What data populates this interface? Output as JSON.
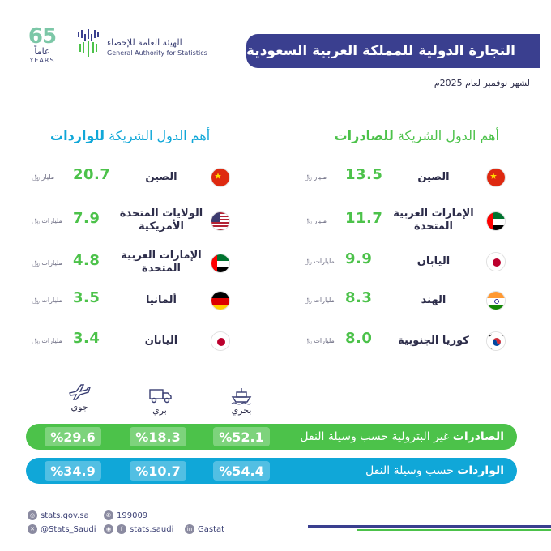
{
  "header": {
    "anniversary_number": "65",
    "anniversary_ar": "عاماً",
    "anniversary_en": "YEARS",
    "org_name_ar": "الهيئة العامة للإحصاء",
    "org_name_en": "General Authority for Statistics",
    "title": "التجارة الدولية للمملكة العربية السعودية",
    "subtitle": "لشهر نوفمبر لعام 2025م"
  },
  "exports": {
    "title_prefix": "أهم الدول الشريكة",
    "title_bold": "للصادرات",
    "color": "#4cc24a",
    "items": [
      {
        "country": "الصين",
        "value": "13.5",
        "unit": "مليار ﷼",
        "flag": "china-flag-icon"
      },
      {
        "country": "الإمارات العربية المتحدة",
        "value": "11.7",
        "unit": "مليار ﷼",
        "flag": "uae-flag-icon"
      },
      {
        "country": "اليابان",
        "value": "9.9",
        "unit": "مليارات ﷼",
        "flag": "japan-flag-icon"
      },
      {
        "country": "الهند",
        "value": "8.3",
        "unit": "مليارات ﷼",
        "flag": "india-flag-icon"
      },
      {
        "country": "كوريا الجنوبية",
        "value": "8.0",
        "unit": "مليارات ﷼",
        "flag": "south-korea-flag-icon"
      }
    ]
  },
  "imports": {
    "title_prefix": "أهم الدول الشريكة",
    "title_bold": "للواردات",
    "color": "#10a7d8",
    "items": [
      {
        "country": "الصين",
        "value": "20.7",
        "unit": "مليار ﷼",
        "flag": "china-flag-icon"
      },
      {
        "country": "الولايات المتحدة الأمريكية",
        "value": "7.9",
        "unit": "مليارات ﷼",
        "flag": "usa-flag-icon"
      },
      {
        "country": "الإمارات العربية المتحدة",
        "value": "4.8",
        "unit": "مليارات ﷼",
        "flag": "uae-flag-icon"
      },
      {
        "country": "ألمانيا",
        "value": "3.5",
        "unit": "مليارات ﷼",
        "flag": "germany-flag-icon"
      },
      {
        "country": "اليابان",
        "value": "3.4",
        "unit": "مليارات ﷼",
        "flag": "japan-flag-icon"
      }
    ]
  },
  "transport": {
    "modes": [
      {
        "label": "جوي",
        "icon": "airplane-icon"
      },
      {
        "label": "بري",
        "icon": "truck-icon"
      },
      {
        "label": "بحري",
        "icon": "ship-icon"
      }
    ],
    "exports_bar": {
      "label_bold": "الصادرات",
      "label_rest": "غير البترولية حسب وسيلة النقل",
      "air": "%29.6",
      "land": "%18.3",
      "sea": "%52.1"
    },
    "imports_bar": {
      "label_bold": "الواردات",
      "label_rest": "حسب وسيلة النقل",
      "air": "%34.9",
      "land": "%10.7",
      "sea": "%54.4"
    }
  },
  "footer": {
    "website": "stats.gov.sa",
    "phone": "199009",
    "twitter": "@Stats_Saudi",
    "social": "stats.saudi",
    "linkedin": "Gastat"
  }
}
